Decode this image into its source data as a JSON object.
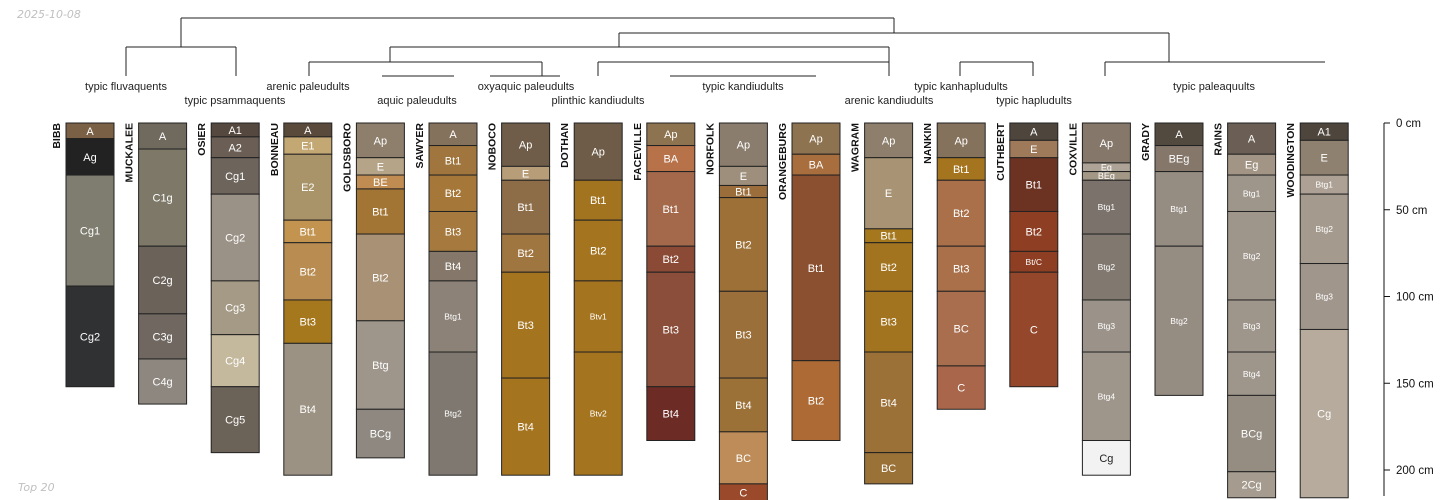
{
  "header": {
    "date": "2025-10-08"
  },
  "footer": {
    "note": "Top 20"
  },
  "chart_data": {
    "type": "soil-profile-sketch",
    "depth_axis": {
      "unit": "cm",
      "min": 0,
      "max": 215,
      "ticks": [
        0,
        50,
        100,
        150,
        200
      ],
      "tick_labels": [
        "0 cm",
        "50 cm",
        "100 cm",
        "150 cm",
        "200 cm"
      ]
    },
    "dendrogram_labels": [
      "typic fluvaquents",
      "typic psammaquents",
      "arenic paleudults",
      "aquic paleudults",
      "oxyaquic paleudults",
      "plinthic kandiudults",
      "typic kandiudults",
      "arenic kandiudults",
      "typic kanhapludults",
      "typic hapludults",
      "typic paleaquults"
    ],
    "profiles": [
      {
        "name": "BIBB",
        "horizons": [
          {
            "name": "A",
            "top": 0,
            "bottom": 9,
            "color": "#7a6045"
          },
          {
            "name": "Ag",
            "top": 9,
            "bottom": 30,
            "color": "#222222"
          },
          {
            "name": "Cg1",
            "top": 30,
            "bottom": 94,
            "color": "#7f7d70"
          },
          {
            "name": "Cg2",
            "top": 94,
            "bottom": 152,
            "color": "#303133"
          }
        ]
      },
      {
        "name": "MUCKALEE",
        "horizons": [
          {
            "name": "A",
            "top": 0,
            "bottom": 15,
            "color": "#706a5e"
          },
          {
            "name": "C1g",
            "top": 15,
            "bottom": 71,
            "color": "#7d7868"
          },
          {
            "name": "C2g",
            "top": 71,
            "bottom": 110,
            "color": "#6b625a"
          },
          {
            "name": "C3g",
            "top": 110,
            "bottom": 136,
            "color": "#706860"
          },
          {
            "name": "C4g",
            "top": 136,
            "bottom": 162,
            "color": "#8e877f"
          }
        ]
      },
      {
        "name": "OSIER",
        "horizons": [
          {
            "name": "A1",
            "top": 0,
            "bottom": 8,
            "color": "#55483e"
          },
          {
            "name": "A2",
            "top": 8,
            "bottom": 20,
            "color": "#6a5e55"
          },
          {
            "name": "Cg1",
            "top": 20,
            "bottom": 41,
            "color": "#6d655c"
          },
          {
            "name": "Cg2",
            "top": 41,
            "bottom": 91,
            "color": "#9a9187"
          },
          {
            "name": "Cg3",
            "top": 91,
            "bottom": 122,
            "color": "#a59a85"
          },
          {
            "name": "Cg4",
            "top": 122,
            "bottom": 152,
            "color": "#c4b89d"
          },
          {
            "name": "Cg5",
            "top": 152,
            "bottom": 190,
            "color": "#6c6358"
          }
        ]
      },
      {
        "name": "BONNEAU",
        "horizons": [
          {
            "name": "A",
            "top": 0,
            "bottom": 8,
            "color": "#5a4a3c"
          },
          {
            "name": "E1",
            "top": 8,
            "bottom": 18,
            "color": "#c4a874"
          },
          {
            "name": "E2",
            "top": 18,
            "bottom": 56,
            "color": "#a89468"
          },
          {
            "name": "Bt1",
            "top": 56,
            "bottom": 69,
            "color": "#c3944f"
          },
          {
            "name": "Bt2",
            "top": 69,
            "bottom": 102,
            "color": "#b98d52"
          },
          {
            "name": "Bt3",
            "top": 102,
            "bottom": 127,
            "color": "#a5781e"
          },
          {
            "name": "Bt4",
            "top": 127,
            "bottom": 203,
            "color": "#9c9283"
          }
        ]
      },
      {
        "name": "GOLDSBORO",
        "horizons": [
          {
            "name": "Ap",
            "top": 0,
            "bottom": 20,
            "color": "#8e7f6c"
          },
          {
            "name": "E",
            "top": 20,
            "bottom": 30,
            "color": "#b5a488"
          },
          {
            "name": "BE",
            "top": 30,
            "bottom": 38,
            "color": "#c08c52"
          },
          {
            "name": "Bt1",
            "top": 38,
            "bottom": 64,
            "color": "#a37534"
          },
          {
            "name": "Bt2",
            "top": 64,
            "bottom": 114,
            "color": "#a89174"
          },
          {
            "name": "Btg",
            "top": 114,
            "bottom": 165,
            "color": "#9e958b"
          },
          {
            "name": "BCg",
            "top": 165,
            "bottom": 193,
            "color": "#8e8880"
          }
        ]
      },
      {
        "name": "SAWYER",
        "horizons": [
          {
            "name": "A",
            "top": 0,
            "bottom": 13,
            "color": "#85725c"
          },
          {
            "name": "Bt1",
            "top": 13,
            "bottom": 30,
            "color": "#a0763e"
          },
          {
            "name": "Bt2",
            "top": 30,
            "bottom": 51,
            "color": "#a5783a"
          },
          {
            "name": "Bt3",
            "top": 51,
            "bottom": 74,
            "color": "#a67a3e"
          },
          {
            "name": "Bt4",
            "top": 74,
            "bottom": 91,
            "color": "#85786b"
          },
          {
            "name": "Btg1",
            "top": 91,
            "bottom": 132,
            "color": "#8c8278"
          },
          {
            "name": "Btg2",
            "top": 132,
            "bottom": 203,
            "color": "#7f7870"
          }
        ]
      },
      {
        "name": "NOBOCO",
        "horizons": [
          {
            "name": "Ap",
            "top": 0,
            "bottom": 25,
            "color": "#6f5d49"
          },
          {
            "name": "E",
            "top": 25,
            "bottom": 33,
            "color": "#b79d78"
          },
          {
            "name": "Bt1",
            "top": 33,
            "bottom": 64,
            "color": "#8c6d48"
          },
          {
            "name": "Bt2",
            "top": 64,
            "bottom": 86,
            "color": "#a07640"
          },
          {
            "name": "Bt3",
            "top": 86,
            "bottom": 147,
            "color": "#a4741f"
          },
          {
            "name": "Bt4",
            "top": 147,
            "bottom": 203,
            "color": "#a5741f"
          }
        ]
      },
      {
        "name": "DOTHAN",
        "horizons": [
          {
            "name": "Ap",
            "top": 0,
            "bottom": 33,
            "color": "#6e5c48"
          },
          {
            "name": "Bt1",
            "top": 33,
            "bottom": 56,
            "color": "#a37420"
          },
          {
            "name": "Bt2",
            "top": 56,
            "bottom": 91,
            "color": "#a5741f"
          },
          {
            "name": "Btv1",
            "top": 91,
            "bottom": 132,
            "color": "#a5741f"
          },
          {
            "name": "Btv2",
            "top": 132,
            "bottom": 203,
            "color": "#a5741f"
          }
        ]
      },
      {
        "name": "FACEVILLE",
        "horizons": [
          {
            "name": "Ap",
            "top": 0,
            "bottom": 13,
            "color": "#8e7350"
          },
          {
            "name": "BA",
            "top": 13,
            "bottom": 28,
            "color": "#b77249"
          },
          {
            "name": "Bt1",
            "top": 28,
            "bottom": 71,
            "color": "#a3694a"
          },
          {
            "name": "Bt2",
            "top": 71,
            "bottom": 86,
            "color": "#8b4a36"
          },
          {
            "name": "Bt3",
            "top": 86,
            "bottom": 152,
            "color": "#8b4e3a"
          },
          {
            "name": "Bt4",
            "top": 152,
            "bottom": 183,
            "color": "#6c2b24"
          }
        ]
      },
      {
        "name": "NORFOLK",
        "horizons": [
          {
            "name": "Ap",
            "top": 0,
            "bottom": 25,
            "color": "#8a7d6e"
          },
          {
            "name": "E",
            "top": 25,
            "bottom": 36,
            "color": "#9e8f7d"
          },
          {
            "name": "Bt1",
            "top": 36,
            "bottom": 43,
            "color": "#9a6d3a"
          },
          {
            "name": "Bt2",
            "top": 43,
            "bottom": 97,
            "color": "#9c7037"
          },
          {
            "name": "Bt3",
            "top": 97,
            "bottom": 147,
            "color": "#9a6f3a"
          },
          {
            "name": "Bt4",
            "top": 147,
            "bottom": 178,
            "color": "#9c7138"
          },
          {
            "name": "BC",
            "top": 178,
            "bottom": 208,
            "color": "#bd8c58"
          },
          {
            "name": "C",
            "top": 208,
            "bottom": 218,
            "color": "#9a4a2a"
          }
        ]
      },
      {
        "name": "ORANGEBURG",
        "horizons": [
          {
            "name": "Ap",
            "top": 0,
            "bottom": 18,
            "color": "#8e7350"
          },
          {
            "name": "BA",
            "top": 18,
            "bottom": 30,
            "color": "#a96e3e"
          },
          {
            "name": "Bt1",
            "top": 30,
            "bottom": 137,
            "color": "#8b5030"
          },
          {
            "name": "Bt2",
            "top": 137,
            "bottom": 183,
            "color": "#ad6a35"
          }
        ]
      },
      {
        "name": "WAGRAM",
        "horizons": [
          {
            "name": "Ap",
            "top": 0,
            "bottom": 20,
            "color": "#8e7f6c"
          },
          {
            "name": "E",
            "top": 20,
            "bottom": 61,
            "color": "#a89474"
          },
          {
            "name": "Bt1",
            "top": 61,
            "bottom": 69,
            "color": "#a5781e"
          },
          {
            "name": "Bt2",
            "top": 69,
            "bottom": 97,
            "color": "#a37420"
          },
          {
            "name": "Bt3",
            "top": 97,
            "bottom": 132,
            "color": "#a37420"
          },
          {
            "name": "Bt4",
            "top": 132,
            "bottom": 190,
            "color": "#9c7138"
          },
          {
            "name": "BC",
            "top": 190,
            "bottom": 208,
            "color": "#9a7238"
          }
        ]
      },
      {
        "name": "NANKIN",
        "horizons": [
          {
            "name": "Ap",
            "top": 0,
            "bottom": 20,
            "color": "#85725c"
          },
          {
            "name": "Bt1",
            "top": 20,
            "bottom": 33,
            "color": "#a5741f"
          },
          {
            "name": "Bt2",
            "top": 33,
            "bottom": 71,
            "color": "#a9704a"
          },
          {
            "name": "Bt3",
            "top": 71,
            "bottom": 97,
            "color": "#a9704a"
          },
          {
            "name": "BC",
            "top": 97,
            "bottom": 140,
            "color": "#a96e4e"
          },
          {
            "name": "C",
            "top": 140,
            "bottom": 165,
            "color": "#a9664a"
          }
        ]
      },
      {
        "name": "CUTHBERT",
        "horizons": [
          {
            "name": "A",
            "top": 0,
            "bottom": 10,
            "color": "#4e463d"
          },
          {
            "name": "E",
            "top": 10,
            "bottom": 20,
            "color": "#9e7a5a"
          },
          {
            "name": "Bt1",
            "top": 20,
            "bottom": 51,
            "color": "#6c3322"
          },
          {
            "name": "Bt2",
            "top": 51,
            "bottom": 74,
            "color": "#8e3e22"
          },
          {
            "name": "Bt/C",
            "top": 74,
            "bottom": 86,
            "color": "#8e3e22"
          },
          {
            "name": "C",
            "top": 86,
            "bottom": 152,
            "color": "#94472a"
          }
        ]
      },
      {
        "name": "COXVILLE",
        "horizons": [
          {
            "name": "Ap",
            "top": 0,
            "bottom": 23,
            "color": "#85786b"
          },
          {
            "name": "Eg",
            "top": 23,
            "bottom": 28,
            "color": "#ada497"
          },
          {
            "name": "BEg",
            "top": 28,
            "bottom": 33,
            "color": "#a39786"
          },
          {
            "name": "Btg1",
            "top": 33,
            "bottom": 64,
            "color": "#7b736b"
          },
          {
            "name": "Btg2",
            "top": 64,
            "bottom": 102,
            "color": "#817970"
          },
          {
            "name": "Btg3",
            "top": 102,
            "bottom": 132,
            "color": "#9b9389"
          },
          {
            "name": "Btg4",
            "top": 132,
            "bottom": 183,
            "color": "#9e958b"
          },
          {
            "name": "Cg",
            "top": 183,
            "bottom": 203,
            "color": "#f2f2f2"
          }
        ]
      },
      {
        "name": "GRADY",
        "horizons": [
          {
            "name": "A",
            "top": 0,
            "bottom": 13,
            "color": "#52493f"
          },
          {
            "name": "BEg",
            "top": 13,
            "bottom": 28,
            "color": "#85786b"
          },
          {
            "name": "Btg1",
            "top": 28,
            "bottom": 71,
            "color": "#958c82"
          },
          {
            "name": "Btg2",
            "top": 71,
            "bottom": 157,
            "color": "#958c82"
          }
        ]
      },
      {
        "name": "RAINS",
        "horizons": [
          {
            "name": "A",
            "top": 0,
            "bottom": 18,
            "color": "#6b5f55"
          },
          {
            "name": "Eg",
            "top": 18,
            "bottom": 30,
            "color": "#a39585"
          },
          {
            "name": "Btg1",
            "top": 30,
            "bottom": 51,
            "color": "#9e958b"
          },
          {
            "name": "Btg2",
            "top": 51,
            "bottom": 102,
            "color": "#9e958b"
          },
          {
            "name": "Btg3",
            "top": 102,
            "bottom": 132,
            "color": "#9e958b"
          },
          {
            "name": "Btg4",
            "top": 132,
            "bottom": 157,
            "color": "#9e958b"
          },
          {
            "name": "BCg",
            "top": 157,
            "bottom": 201,
            "color": "#958c82"
          },
          {
            "name": "2Cg",
            "top": 201,
            "bottom": 216,
            "color": "#a59c8f"
          }
        ]
      },
      {
        "name": "WOODINGTON",
        "horizons": [
          {
            "name": "A1",
            "top": 0,
            "bottom": 10,
            "color": "#4e463d"
          },
          {
            "name": "E",
            "top": 10,
            "bottom": 30,
            "color": "#8e8170"
          },
          {
            "name": "Btg1",
            "top": 30,
            "bottom": 41,
            "color": "#ada094"
          },
          {
            "name": "Btg2",
            "top": 41,
            "bottom": 81,
            "color": "#a59a8e"
          },
          {
            "name": "Btg3",
            "top": 81,
            "bottom": 119,
            "color": "#a0968c"
          },
          {
            "name": "Cg",
            "top": 119,
            "bottom": 216,
            "color": "#b6ab9c"
          }
        ]
      }
    ]
  }
}
